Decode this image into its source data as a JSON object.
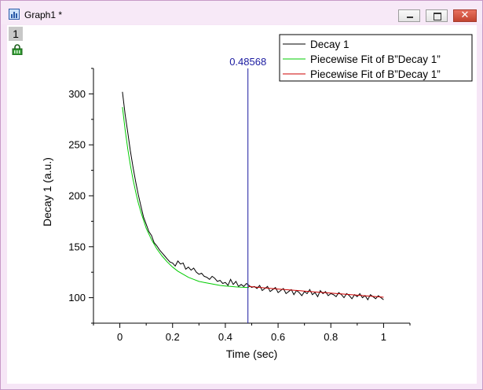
{
  "window": {
    "title": "Graph1 *"
  },
  "layer": {
    "number": "1"
  },
  "legend": {
    "entries": [
      {
        "label": "Decay 1",
        "color": "#000000"
      },
      {
        "label": "Piecewise Fit of B”Decay 1”",
        "color": "#00cc00"
      },
      {
        "label": "Piecewise Fit of B”Decay 1”",
        "color": "#cc0000"
      }
    ]
  },
  "cursor": {
    "label": "0.48568",
    "x": 0.48568,
    "color": "#1a1aa0"
  },
  "chart_data": {
    "type": "line",
    "xlabel": "Time (sec)",
    "ylabel": "Decay 1 (a.u.)",
    "xlim": [
      -0.1,
      1.1
    ],
    "ylim": [
      75,
      325
    ],
    "xticks": [
      0,
      0.2,
      0.4,
      0.6,
      0.8,
      1
    ],
    "xtick_labels": [
      "0",
      "0.2",
      "0.4",
      "0.6",
      "0.8",
      "1"
    ],
    "yticks": [
      100,
      150,
      200,
      250,
      300
    ],
    "ytick_labels": [
      "100",
      "150",
      "200",
      "250",
      "300"
    ],
    "series": [
      {
        "name": "Decay 1",
        "color": "#000000",
        "x": [
          0.01,
          0.02,
          0.03,
          0.04,
          0.05,
          0.06,
          0.07,
          0.08,
          0.09,
          0.1,
          0.11,
          0.12,
          0.13,
          0.14,
          0.15,
          0.16,
          0.17,
          0.18,
          0.19,
          0.2,
          0.21,
          0.22,
          0.23,
          0.24,
          0.25,
          0.26,
          0.27,
          0.28,
          0.29,
          0.3,
          0.31,
          0.32,
          0.33,
          0.34,
          0.35,
          0.36,
          0.37,
          0.38,
          0.39,
          0.4,
          0.41,
          0.42,
          0.43,
          0.44,
          0.45,
          0.46,
          0.47,
          0.48,
          0.49,
          0.5,
          0.51,
          0.52,
          0.53,
          0.54,
          0.55,
          0.56,
          0.57,
          0.58,
          0.59,
          0.6,
          0.61,
          0.62,
          0.63,
          0.64,
          0.65,
          0.66,
          0.67,
          0.68,
          0.69,
          0.7,
          0.71,
          0.72,
          0.73,
          0.74,
          0.75,
          0.76,
          0.77,
          0.78,
          0.79,
          0.8,
          0.81,
          0.82,
          0.83,
          0.84,
          0.85,
          0.86,
          0.87,
          0.88,
          0.89,
          0.9,
          0.91,
          0.92,
          0.93,
          0.94,
          0.95,
          0.96,
          0.97,
          0.98,
          0.99,
          1.0
        ],
        "y": [
          302,
          280,
          262,
          244,
          228,
          214,
          201,
          190,
          179,
          172,
          165,
          161,
          154,
          151,
          147,
          144,
          141,
          138,
          135,
          134,
          131,
          136,
          133,
          134,
          128,
          130,
          127,
          129,
          125,
          123,
          124,
          121,
          120,
          118,
          121,
          119,
          116,
          117,
          114,
          115,
          112,
          118,
          113,
          116,
          111,
          113,
          111,
          114,
          112,
          110,
          111,
          109,
          112,
          107,
          109,
          111,
          106,
          108,
          110,
          105,
          107,
          109,
          104,
          106,
          108,
          103,
          107,
          105,
          102,
          106,
          104,
          108,
          103,
          105,
          101,
          107,
          104,
          106,
          102,
          104,
          103,
          101,
          105,
          103,
          100,
          104,
          102,
          99,
          103,
          101,
          104,
          100,
          102,
          98,
          103,
          101,
          99,
          102,
          100,
          98
        ]
      },
      {
        "name": "Piecewise Fit of B”Decay 1”",
        "color": "#00cc00",
        "x": [
          0.01,
          0.02,
          0.03,
          0.04,
          0.05,
          0.06,
          0.07,
          0.08,
          0.09,
          0.1,
          0.12,
          0.14,
          0.16,
          0.18,
          0.2,
          0.22,
          0.24,
          0.26,
          0.28,
          0.3,
          0.32,
          0.34,
          0.36,
          0.38,
          0.4,
          0.42,
          0.44,
          0.46,
          0.48,
          0.49
        ],
        "y": [
          287,
          265,
          246,
          230,
          216,
          204,
          193,
          184,
          176,
          168,
          157,
          148,
          141,
          135,
          130,
          126,
          123,
          120,
          118,
          116,
          115,
          114,
          113,
          112,
          111.5,
          111,
          110.6,
          110.3,
          110.1,
          110
        ]
      },
      {
        "name": "Piecewise Fit of B”Decay 1”",
        "color": "#cc0000",
        "x": [
          0.48568,
          0.6,
          0.7,
          0.8,
          0.9,
          1.0
        ],
        "y": [
          111,
          108.5,
          106.5,
          104.5,
          102.5,
          100.5
        ]
      }
    ]
  }
}
